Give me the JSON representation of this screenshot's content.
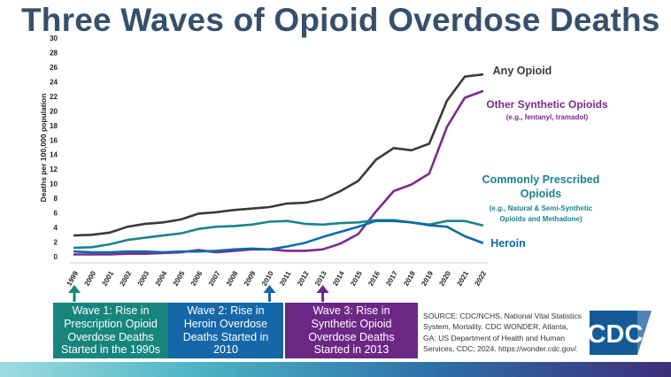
{
  "title": "Three Waves of Opioid Overdose Deaths",
  "chart_data": {
    "type": "line",
    "ylabel": "Deaths per 100,000 population",
    "ylim": [
      0,
      30
    ],
    "yticks": [
      0,
      2,
      4,
      6,
      8,
      10,
      12,
      14,
      16,
      18,
      20,
      22,
      24,
      26,
      28,
      30
    ],
    "categories": [
      "1999",
      "2000",
      "2001",
      "2002",
      "2003",
      "2004",
      "2005",
      "2006",
      "2007",
      "2008",
      "2009",
      "2010",
      "2011",
      "2012",
      "2013",
      "2014",
      "2015",
      "2016",
      "2017",
      "2018",
      "2019",
      "2020",
      "2021",
      "2022"
    ],
    "series": [
      {
        "name": "Any Opioid",
        "color": "#3a3a3a",
        "values": [
          2.9,
          3.0,
          3.3,
          4.1,
          4.5,
          4.7,
          5.1,
          5.9,
          6.1,
          6.4,
          6.6,
          6.8,
          7.3,
          7.4,
          7.9,
          9.0,
          10.4,
          13.3,
          14.9,
          14.6,
          15.5,
          21.4,
          24.7,
          25.0
        ]
      },
      {
        "name": "Other Synthetic Opioids",
        "color": "#7b2a8c",
        "values": [
          0.3,
          0.3,
          0.3,
          0.4,
          0.4,
          0.5,
          0.6,
          0.9,
          0.6,
          0.8,
          1.0,
          1.0,
          0.8,
          0.8,
          1.0,
          1.8,
          3.1,
          6.2,
          9.0,
          9.9,
          11.4,
          17.8,
          21.8,
          22.7
        ]
      },
      {
        "name": "Commonly Prescribed Opioids",
        "color": "#1a8390",
        "values": [
          1.2,
          1.3,
          1.7,
          2.3,
          2.6,
          2.9,
          3.2,
          3.8,
          4.1,
          4.2,
          4.4,
          4.8,
          4.9,
          4.5,
          4.4,
          4.6,
          4.7,
          5.0,
          5.0,
          4.7,
          4.4,
          4.9,
          4.9,
          4.3
        ]
      },
      {
        "name": "Heroin",
        "color": "#0e6aa6",
        "values": [
          0.7,
          0.6,
          0.6,
          0.7,
          0.7,
          0.6,
          0.7,
          0.7,
          0.8,
          1.0,
          1.1,
          1.0,
          1.4,
          1.9,
          2.7,
          3.4,
          4.1,
          4.9,
          4.9,
          4.7,
          4.3,
          4.1,
          2.8,
          1.9
        ]
      }
    ],
    "series_labels": {
      "any": "Any Opioid",
      "synthetic": "Other Synthetic Opioids",
      "synthetic_sub": "(e.g., fentanyl, tramadol)",
      "prescribed_line1": "Commonly Prescribed",
      "prescribed_line2": "Opioids",
      "prescribed_sub1": "(e.g., Natural & Semi-Synthetic",
      "prescribed_sub2": "Opioids and Methadone)",
      "heroin": "Heroin"
    },
    "markers": [
      {
        "year": "1999",
        "color": "#16857e"
      },
      {
        "year": "2010",
        "color": "#1567a8"
      },
      {
        "year": "2013",
        "color": "#6c2785"
      }
    ]
  },
  "waves": [
    {
      "text": "Wave 1: Rise in Prescription Opioid Overdose Deaths Started in the 1990s",
      "color": "#16857e"
    },
    {
      "text": "Wave 2: Rise in Heroin Overdose Deaths Started in 2010",
      "color": "#1567a8"
    },
    {
      "text": "Wave 3: Rise in Synthetic Opioid Overdose Deaths Started in 2013",
      "color": "#6c2785"
    }
  ],
  "source": "SOURCE: CDC/NCHS, National Vital Statistics System, Mortality. CDC WONDER, Atlanta, GA: US Department of Health and Human Services, CDC; 2024. https://wonder.cdc.gov/.",
  "logo_text": "CDC"
}
